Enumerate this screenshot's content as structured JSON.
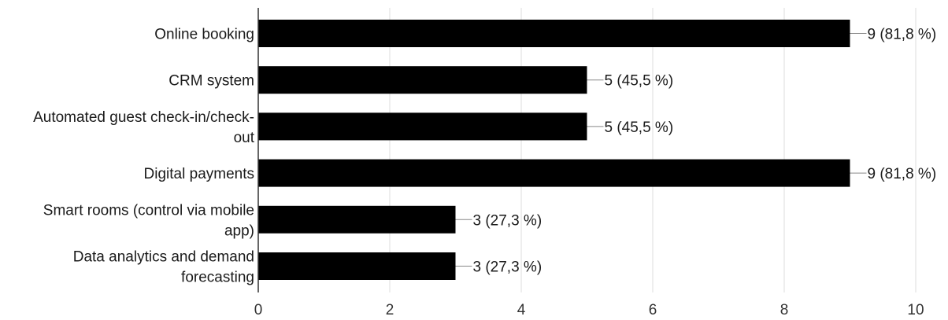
{
  "chart_data": {
    "type": "bar",
    "orientation": "horizontal",
    "categories": [
      [
        "Online booking"
      ],
      [
        "CRM system"
      ],
      [
        "Automated guest check-in/check-",
        "out"
      ],
      [
        "Digital payments"
      ],
      [
        "Smart rooms (control via mobile",
        "app)"
      ],
      [
        "Data analytics and demand",
        "forecasting"
      ]
    ],
    "values": [
      9,
      5,
      5,
      9,
      3,
      3
    ],
    "data_labels": [
      "9 (81,8 %)",
      "5 (45,5 %)",
      "5 (45,5 %)",
      "9 (81,8 %)",
      "3 (27,3 %)",
      "3 (27,3 %)"
    ],
    "xlim": [
      0,
      10
    ],
    "xticks": [
      0,
      2,
      4,
      6,
      8,
      10
    ],
    "bar_color": "#000000",
    "grid": true
  }
}
